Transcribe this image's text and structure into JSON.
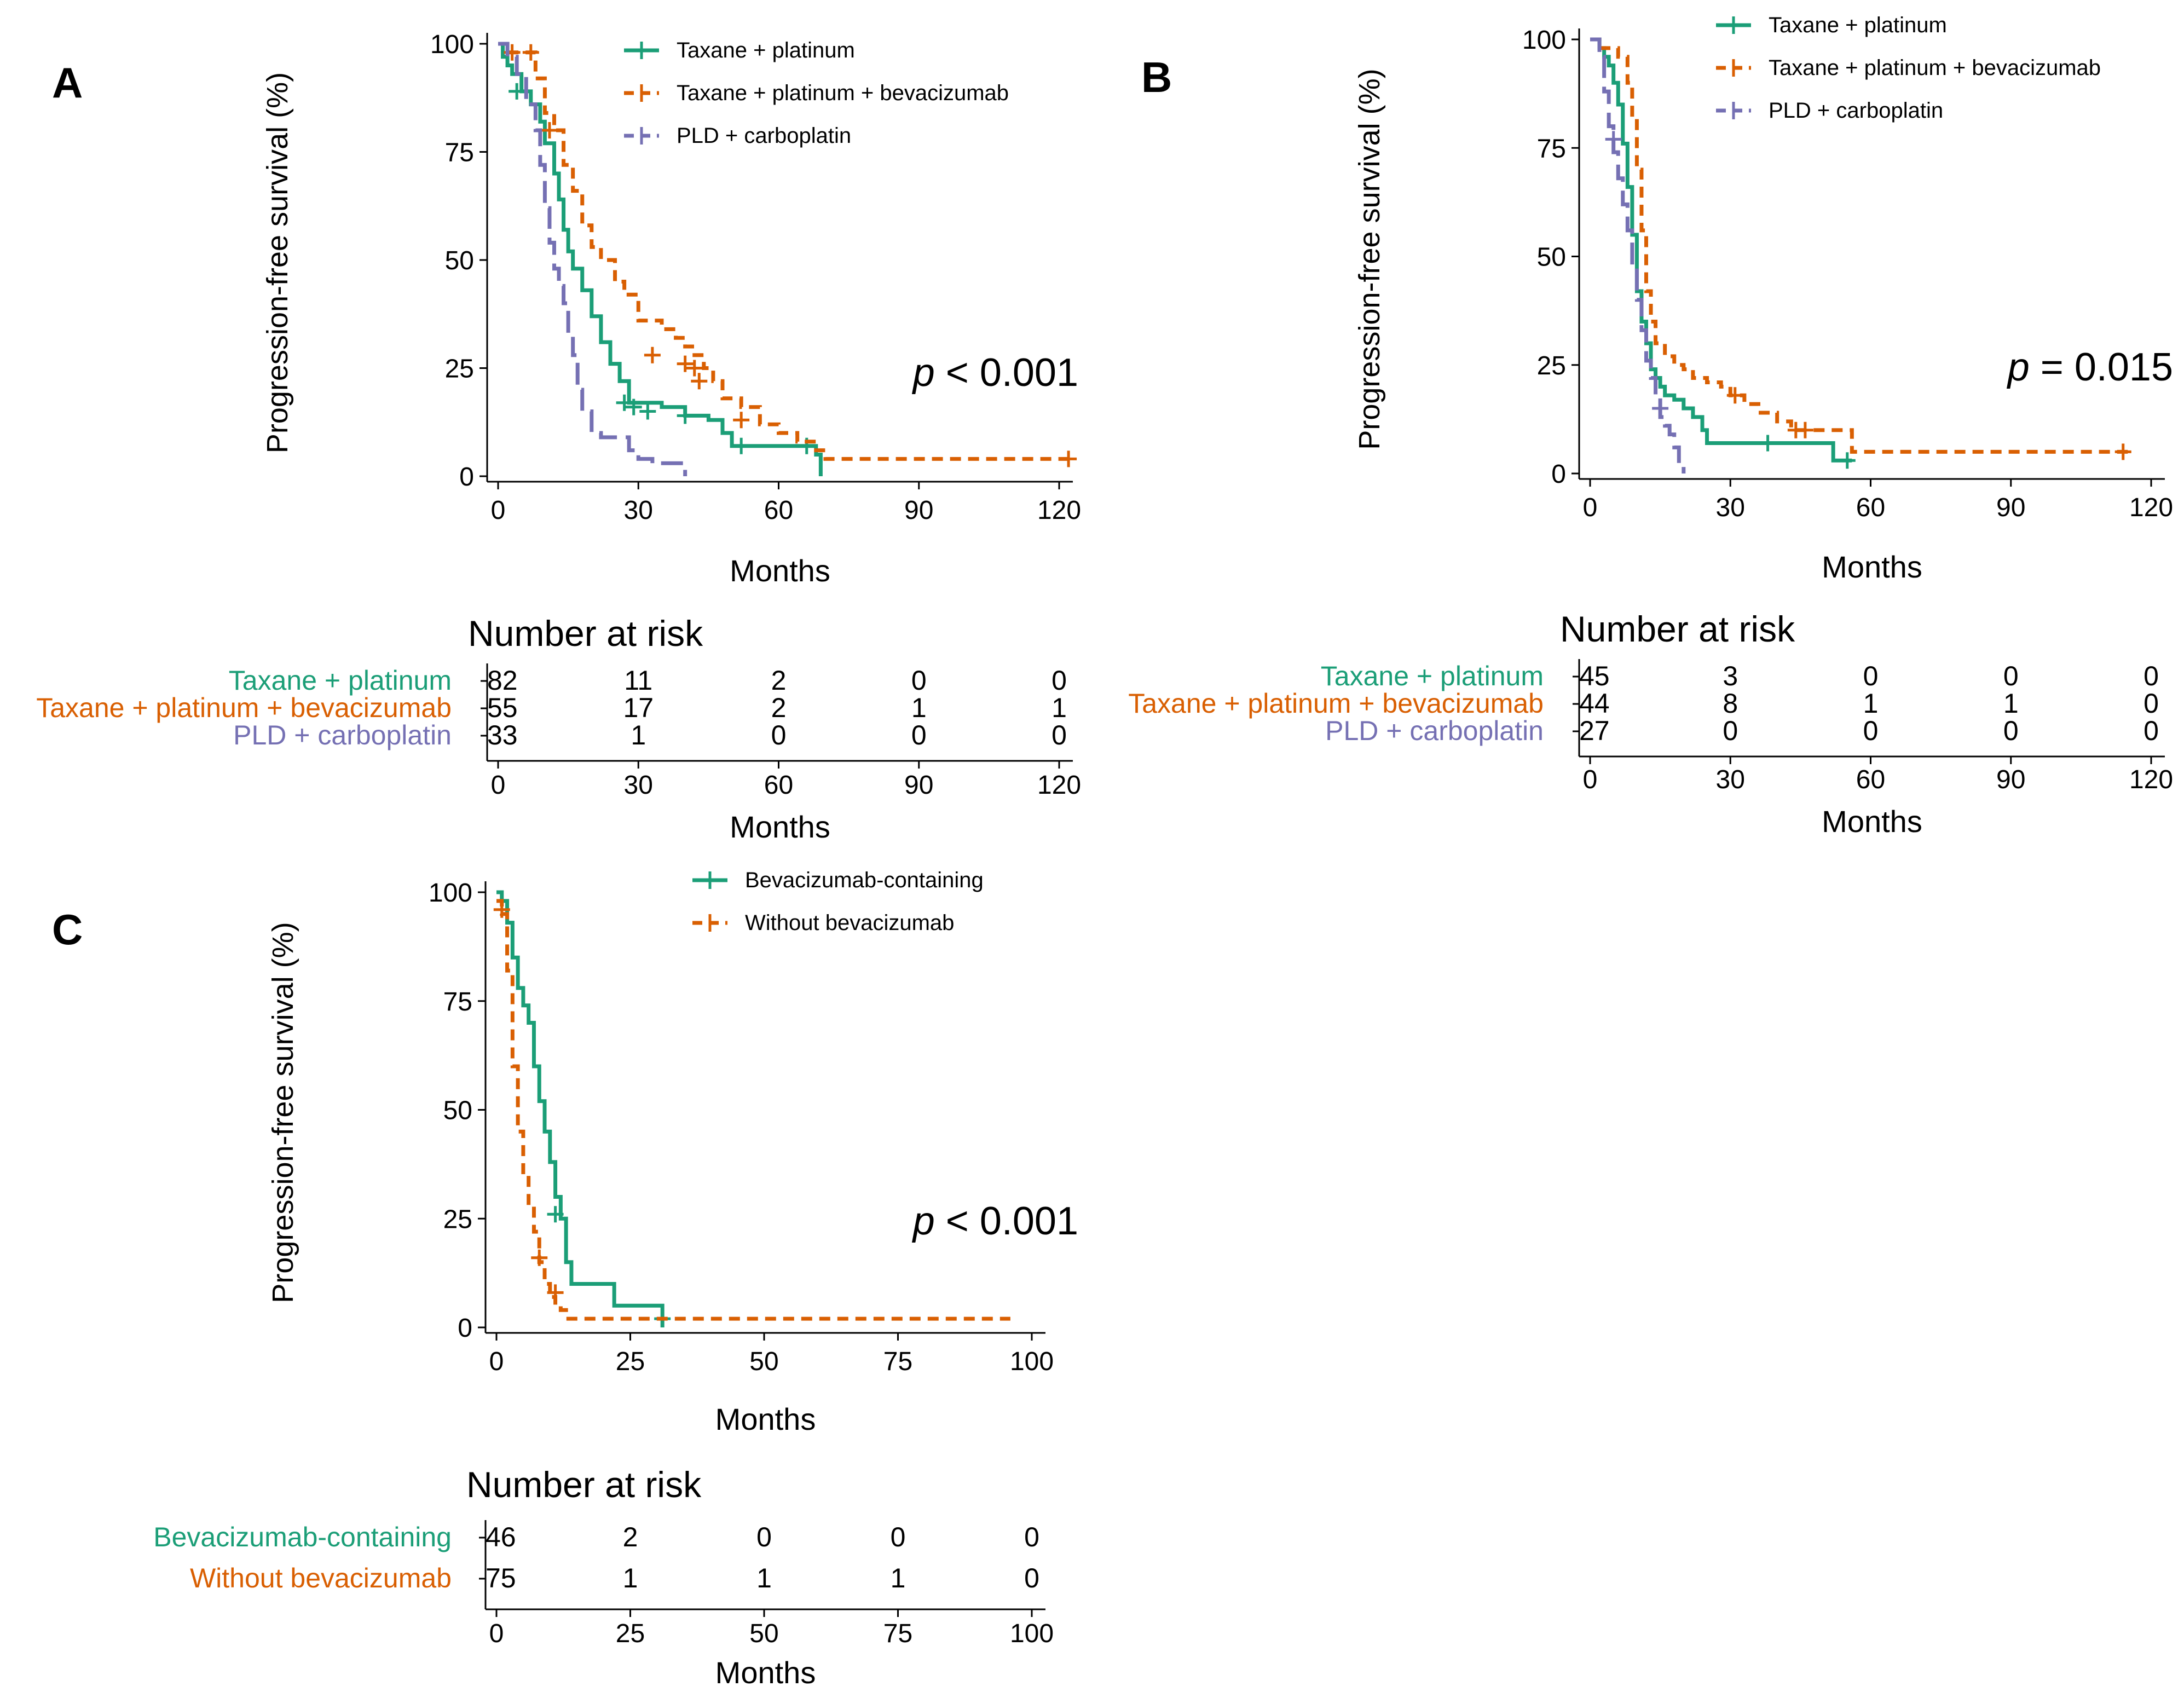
{
  "colors": {
    "taxane": "#1b9e77",
    "bev": "#d95f02",
    "pld": "#7570b3",
    "axis": "#000000"
  },
  "chart_data": [
    {
      "panel": "A",
      "type": "line",
      "subtype": "kaplan-meier",
      "ylabel": "Progression-free survival (%)",
      "xlabel": "Months",
      "xlim": [
        0,
        120
      ],
      "ylim": [
        0,
        100
      ],
      "xticks": [
        0,
        30,
        60,
        90,
        120
      ],
      "yticks": [
        0,
        25,
        50,
        75,
        100
      ],
      "annotation": {
        "italic": "p",
        "rest": " < 0.001"
      },
      "legend_position": "top",
      "series": [
        {
          "name": "Taxane + platinum",
          "color": "taxane",
          "dash": "solid",
          "x": [
            0,
            1,
            2,
            3,
            5,
            7,
            9,
            10,
            12,
            13,
            14,
            15,
            16,
            18,
            20,
            22,
            24,
            26,
            28,
            35,
            40,
            45,
            48,
            50,
            55,
            60,
            65,
            68,
            69
          ],
          "y": [
            100,
            97,
            95,
            93,
            89,
            86,
            82,
            77,
            70,
            64,
            57,
            52,
            48,
            43,
            37,
            31,
            26,
            22,
            17,
            16,
            14,
            13,
            10,
            7,
            7,
            7,
            7,
            5,
            0
          ],
          "censors": [
            [
              4,
              89
            ],
            [
              27,
              17
            ],
            [
              29,
              16
            ],
            [
              32,
              15
            ],
            [
              40,
              14
            ],
            [
              52,
              7
            ],
            [
              66,
              7
            ]
          ]
        },
        {
          "name": "Taxane + platinum + bevacizumab",
          "color": "bev",
          "dash": "dashed",
          "x": [
            0,
            2,
            4,
            6,
            8,
            10,
            12,
            14,
            16,
            18,
            20,
            22,
            25,
            27,
            30,
            35,
            38,
            40,
            42,
            44,
            46,
            48,
            52,
            56,
            60,
            64,
            68,
            70,
            80,
            90,
            100,
            110,
            122
          ],
          "y": [
            100,
            98,
            98,
            98,
            92,
            84,
            80,
            72,
            66,
            58,
            53,
            50,
            45,
            42,
            36,
            34,
            32,
            30,
            28,
            25,
            22,
            18,
            16,
            12,
            10,
            8,
            6,
            4,
            4,
            4,
            4,
            4,
            4
          ],
          "censors": [
            [
              3,
              98
            ],
            [
              7,
              98
            ],
            [
              11,
              80
            ],
            [
              33,
              28
            ],
            [
              40,
              26
            ],
            [
              42,
              25
            ],
            [
              43,
              22
            ],
            [
              52,
              13
            ],
            [
              122,
              4
            ]
          ]
        },
        {
          "name": "PLD + carboplatin",
          "color": "pld",
          "dash": "longdash",
          "x": [
            0,
            2,
            4,
            6,
            8,
            9,
            10,
            11,
            12,
            13,
            14,
            15,
            16,
            17,
            18,
            20,
            22,
            25,
            28,
            30,
            33,
            35,
            38,
            40
          ],
          "y": [
            100,
            97,
            93,
            86,
            80,
            72,
            62,
            54,
            48,
            44,
            40,
            33,
            28,
            20,
            15,
            10,
            9,
            9,
            6,
            4,
            3,
            3,
            3,
            0
          ],
          "censors": []
        }
      ],
      "risk_table": {
        "title": "Number at risk",
        "xlabel": "Months",
        "rows": [
          {
            "label": "Taxane + platinum",
            "color": "taxane",
            "values": [
              "82",
              "11",
              "2",
              "0",
              "0"
            ]
          },
          {
            "label": "Taxane + platinum + bevacizumab",
            "color": "bev",
            "values": [
              "55",
              "17",
              "2",
              "1",
              "1"
            ]
          },
          {
            "label": "PLD + carboplatin",
            "color": "pld",
            "values": [
              "33",
              "1",
              "0",
              "0",
              "0"
            ]
          }
        ]
      }
    },
    {
      "panel": "B",
      "type": "line",
      "subtype": "kaplan-meier",
      "ylabel": "Progression-free survival (%)",
      "xlabel": "Months",
      "xlim": [
        0,
        120
      ],
      "ylim": [
        0,
        100
      ],
      "xticks": [
        0,
        30,
        60,
        90,
        120
      ],
      "yticks": [
        0,
        25,
        50,
        75,
        100
      ],
      "annotation": {
        "italic": "p",
        "rest": " = 0.015"
      },
      "legend_position": "top",
      "series": [
        {
          "name": "Taxane + platinum",
          "color": "taxane",
          "dash": "solid",
          "x": [
            0,
            2,
            3,
            4,
            5,
            6,
            7,
            8,
            9,
            10,
            11,
            12,
            13,
            14,
            15,
            16,
            18,
            20,
            22,
            24,
            25,
            26,
            30,
            35,
            40,
            45,
            50,
            52,
            55,
            56
          ],
          "y": [
            100,
            98,
            96,
            94,
            90,
            85,
            76,
            66,
            55,
            42,
            35,
            30,
            24,
            22,
            20,
            18,
            17,
            15,
            13,
            10,
            7,
            7,
            7,
            7,
            7,
            7,
            7,
            3,
            3,
            3
          ],
          "censors": [
            [
              38,
              7
            ],
            [
              55,
              3
            ]
          ]
        },
        {
          "name": "Taxane + platinum + bevacizumab",
          "color": "bev",
          "dash": "dashed",
          "x": [
            0,
            2,
            4,
            6,
            8,
            9,
            10,
            11,
            12,
            13,
            14,
            16,
            18,
            20,
            22,
            25,
            28,
            30,
            33,
            36,
            40,
            43,
            48,
            52,
            56,
            60,
            80,
            100,
            115
          ],
          "y": [
            100,
            98,
            98,
            96,
            90,
            82,
            70,
            56,
            42,
            35,
            30,
            27,
            25,
            24,
            22,
            21,
            20,
            18,
            16,
            14,
            12,
            10,
            10,
            10,
            5,
            5,
            5,
            5,
            5
          ],
          "censors": [
            [
              31,
              18
            ],
            [
              44,
              10
            ],
            [
              46,
              10
            ],
            [
              114,
              5
            ]
          ]
        },
        {
          "name": "PLD + carboplatin",
          "color": "pld",
          "dash": "longdash",
          "x": [
            0,
            2,
            3,
            4,
            5,
            6,
            7,
            8,
            9,
            10,
            11,
            12,
            13,
            14,
            15,
            16,
            17,
            18,
            19,
            20
          ],
          "y": [
            100,
            96,
            88,
            80,
            74,
            68,
            62,
            56,
            48,
            40,
            33,
            26,
            22,
            18,
            13,
            11,
            9,
            6,
            2,
            0
          ],
          "censors": [
            [
              5,
              77
            ],
            [
              15,
              15
            ]
          ]
        }
      ],
      "risk_table": {
        "title": "Number at risk",
        "xlabel": "Months",
        "rows": [
          {
            "label": "Taxane + platinum",
            "color": "taxane",
            "values": [
              "45",
              "3",
              "0",
              "0",
              "0"
            ]
          },
          {
            "label": "Taxane + platinum + bevacizumab",
            "color": "bev",
            "values": [
              "44",
              "8",
              "1",
              "1",
              "0"
            ]
          },
          {
            "label": "PLD + carboplatin",
            "color": "pld",
            "values": [
              "27",
              "0",
              "0",
              "0",
              "0"
            ]
          }
        ]
      }
    },
    {
      "panel": "C",
      "type": "line",
      "subtype": "kaplan-meier",
      "ylabel": "Progression-free survival (%)",
      "xlabel": "Months",
      "xlim": [
        0,
        100
      ],
      "ylim": [
        0,
        100
      ],
      "xticks": [
        0,
        25,
        50,
        75,
        100
      ],
      "yticks": [
        0,
        25,
        50,
        75,
        100
      ],
      "annotation": {
        "italic": "p",
        "rest": " < 0.001"
      },
      "legend_position": "top",
      "series": [
        {
          "name": "Bevacizumab-containing",
          "color": "taxane",
          "dash": "solid",
          "x": [
            0,
            1,
            2,
            3,
            4,
            5,
            6,
            7,
            8,
            9,
            10,
            11,
            12,
            13,
            14,
            16,
            18,
            20,
            22,
            25,
            28,
            30,
            31
          ],
          "y": [
            100,
            98,
            93,
            85,
            78,
            74,
            70,
            60,
            52,
            45,
            38,
            30,
            25,
            15,
            10,
            10,
            10,
            10,
            5,
            5,
            5,
            5,
            0
          ],
          "censors": [
            [
              11,
              26
            ],
            [
              31,
              2
            ]
          ]
        },
        {
          "name": "Without bevacizumab",
          "color": "bev",
          "dash": "dashed",
          "x": [
            0,
            1,
            2,
            3,
            4,
            5,
            6,
            7,
            8,
            9,
            10,
            11,
            12,
            13,
            14,
            15,
            20,
            30,
            50,
            70,
            90,
            96
          ],
          "y": [
            98,
            95,
            82,
            60,
            45,
            35,
            28,
            22,
            15,
            10,
            7,
            5,
            4,
            2,
            2,
            2,
            2,
            2,
            2,
            2,
            2,
            2
          ],
          "censors": [
            [
              1,
              96
            ],
            [
              8,
              16
            ],
            [
              11,
              8
            ]
          ]
        }
      ],
      "risk_table": {
        "title": "Number at risk",
        "xlabel": "Months",
        "rows": [
          {
            "label": "Bevacizumab-containing",
            "color": "taxane",
            "values": [
              "46",
              "2",
              "0",
              "0",
              "0"
            ]
          },
          {
            "label": "Without bevacizumab",
            "color": "bev",
            "values": [
              "75",
              "1",
              "1",
              "1",
              "0"
            ]
          }
        ]
      }
    }
  ]
}
